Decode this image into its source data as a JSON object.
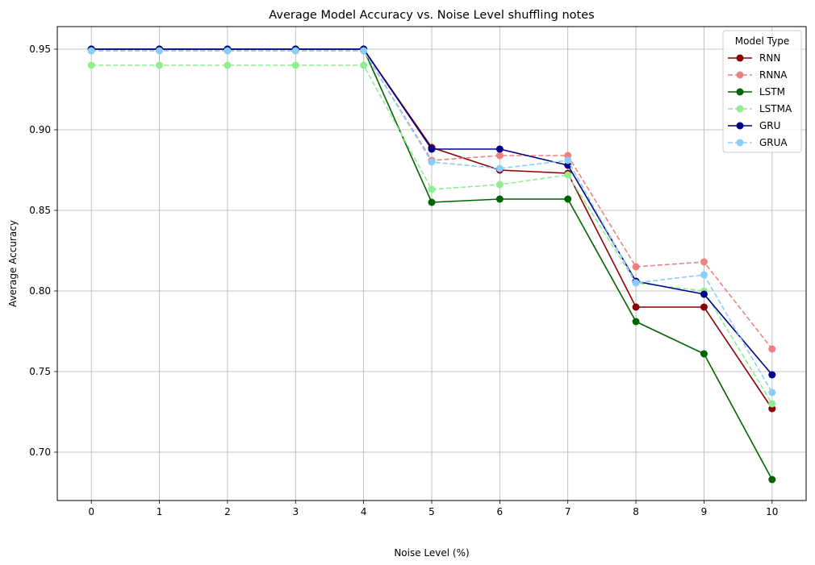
{
  "chart_data": {
    "type": "line",
    "title": "Average Model Accuracy vs. Noise Level shuffling notes",
    "xlabel": "Noise Level (%)",
    "ylabel": "Average Accuracy",
    "x": [
      0,
      1,
      2,
      3,
      4,
      5,
      6,
      7,
      8,
      9,
      10
    ],
    "xlim": [
      -0.5,
      10.5
    ],
    "ylim": [
      0.67,
      0.964
    ],
    "yticks": [
      0.7,
      0.75,
      0.8,
      0.85,
      0.9,
      0.95
    ],
    "ytick_labels": [
      "0.70",
      "0.75",
      "0.80",
      "0.85",
      "0.90",
      "0.95"
    ],
    "grid": true,
    "legend": {
      "title": "Model Type",
      "placement": "top-right"
    },
    "series": [
      {
        "name": "RNN",
        "color": "#8b0000",
        "style": "solid",
        "values": [
          0.95,
          0.95,
          0.95,
          0.95,
          0.95,
          0.889,
          0.875,
          0.873,
          0.79,
          0.79,
          0.727
        ]
      },
      {
        "name": "RNNA",
        "color": "#f08080",
        "style": "dashed",
        "values": [
          0.949,
          0.949,
          0.949,
          0.949,
          0.949,
          0.881,
          0.884,
          0.884,
          0.815,
          0.818,
          0.764
        ]
      },
      {
        "name": "LSTM",
        "color": "#006400",
        "style": "solid",
        "values": [
          0.95,
          0.95,
          0.95,
          0.95,
          0.95,
          0.855,
          0.857,
          0.857,
          0.781,
          0.761,
          0.683
        ]
      },
      {
        "name": "LSTMA",
        "color": "#90ee90",
        "style": "dashed",
        "values": [
          0.94,
          0.94,
          0.94,
          0.94,
          0.94,
          0.863,
          0.866,
          0.872,
          0.805,
          0.8,
          0.73
        ]
      },
      {
        "name": "GRU",
        "color": "#00008b",
        "style": "solid",
        "values": [
          0.95,
          0.95,
          0.95,
          0.95,
          0.95,
          0.888,
          0.888,
          0.878,
          0.806,
          0.798,
          0.748
        ]
      },
      {
        "name": "GRUA",
        "color": "#87cefa",
        "style": "dashed",
        "values": [
          0.949,
          0.949,
          0.949,
          0.949,
          0.949,
          0.88,
          0.876,
          0.881,
          0.805,
          0.81,
          0.737
        ]
      }
    ]
  }
}
